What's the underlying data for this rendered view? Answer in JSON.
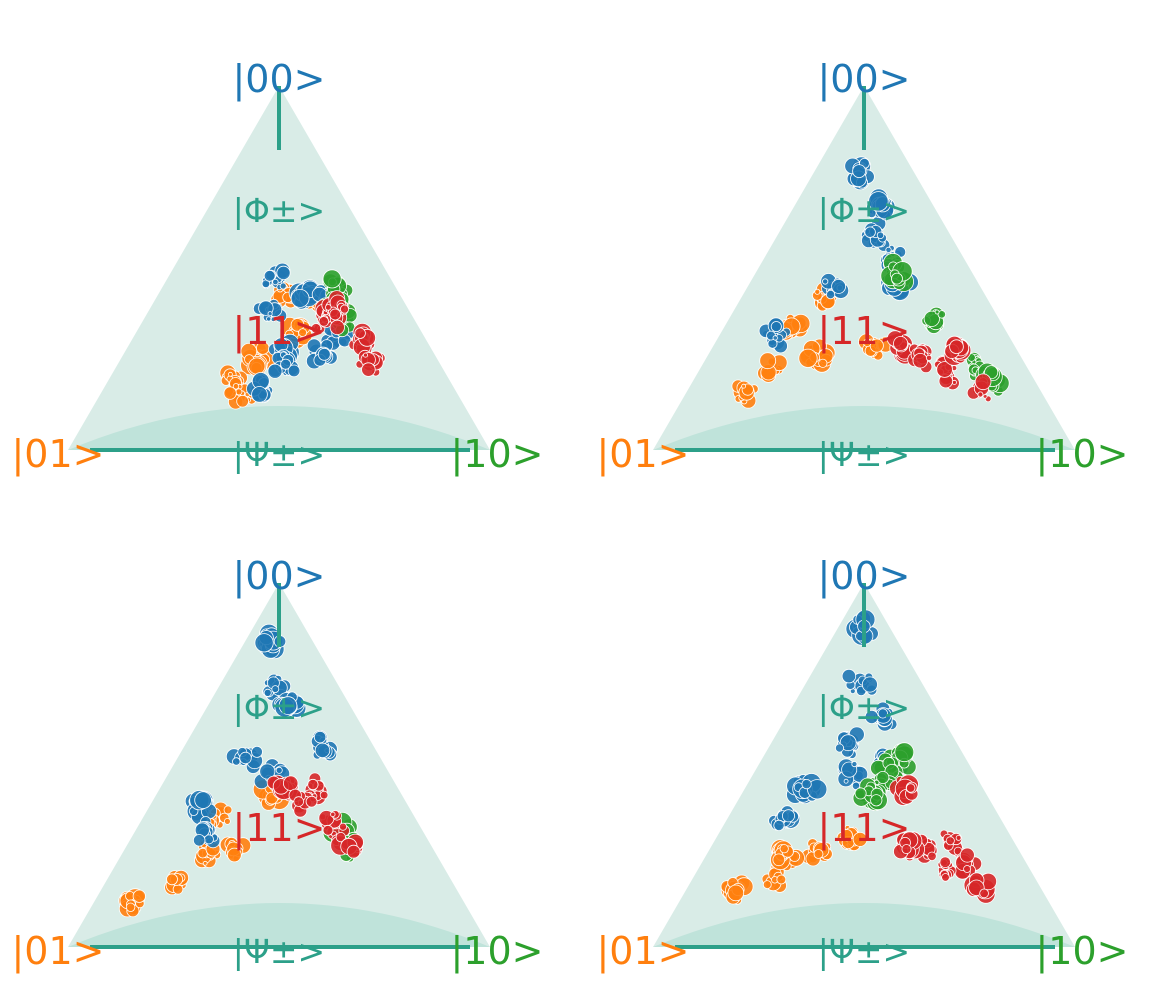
{
  "colors": {
    "state_00": "#1f77b4",
    "state_01": "#ff7f0e",
    "state_10": "#2ca02c",
    "state_11": "#d62728",
    "bell": "#2ca089",
    "fill_outer": "#d9ece7",
    "fill_inner": "#bfe3da"
  },
  "chart_data": [
    {
      "type": "scatter",
      "labels": {
        "top": "|00>",
        "left": "|01>",
        "right": "|10>",
        "center": "|11>",
        "upper": "|Φ±>",
        "bottom": "|Ψ±>"
      },
      "series": [
        {
          "state": "00",
          "clusters": [
            [
              0.32,
              0.13,
              0.25
            ],
            [
              0.3,
              0.04,
              0.26
            ],
            [
              0.2,
              0.09,
              0.36
            ],
            [
              0.2,
              0.28,
              0.3
            ],
            [
              0.25,
              0.2,
              0.15
            ],
            [
              0.32,
              0.11,
              0.1
            ],
            [
              0.07,
              0.36,
              0.28
            ],
            [
              0.09,
              0.22,
              0.24
            ],
            [
              0.1,
              0.1,
              0.3
            ]
          ]
        },
        {
          "state": "01",
          "clusters": [
            [
              0.16,
              0.12,
              0.2
            ],
            [
              0.26,
              0.04,
              0.22
            ],
            [
              0.3,
              0.13,
              0.16
            ],
            [
              0.13,
              0.3,
              0.2
            ],
            [
              0.08,
              0.4,
              0.18
            ],
            [
              0.03,
              0.38,
              0.2
            ]
          ]
        },
        {
          "state": "10",
          "clusters": [
            [
              0.33,
              0.03,
              0.3
            ],
            [
              0.27,
              0.03,
              0.3
            ],
            [
              0.24,
              0.05,
              0.35
            ]
          ]
        },
        {
          "state": "11",
          "clusters": [
            [
              0.3,
              0.1,
              0.35
            ],
            [
              0.17,
              0.02,
              0.25
            ],
            [
              0.25,
              0.02,
              0.3
            ],
            [
              0.16,
              0.0,
              0.4
            ],
            [
              0.1,
              0.02,
              0.45
            ]
          ]
        }
      ]
    },
    {
      "type": "scatter",
      "labels": {
        "top": "|00>",
        "left": "|01>",
        "right": "|10>",
        "center": "|11>",
        "upper": "|Φ±>",
        "bottom": "|Ψ±>"
      },
      "series": [
        {
          "state": "00",
          "clusters": [
            [
              0.68,
              0.04,
              0.02
            ],
            [
              0.45,
              0.03,
              0.1
            ],
            [
              0.38,
              0.01,
              0.15
            ],
            [
              0.3,
              0.04,
              0.2
            ],
            [
              0.36,
              0.25,
              0.1
            ],
            [
              0.22,
              0.45,
              0.04
            ],
            [
              0.55,
              0.0,
              0.09
            ]
          ]
        },
        {
          "state": "01",
          "clusters": [
            [
              0.2,
              0.36,
              0.02
            ],
            [
              0.08,
              0.46,
              0.01
            ],
            [
              0.04,
              0.58,
              0.01
            ],
            [
              0.06,
              0.28,
              0.06
            ],
            [
              0.04,
              0.08,
              0.14
            ],
            [
              0.28,
              0.24,
              0.04
            ]
          ]
        },
        {
          "state": "10",
          "clusters": [
            [
              0.32,
              0.0,
              0.16
            ],
            [
              0.22,
              0.0,
              0.34
            ],
            [
              0.12,
              0.0,
              0.52
            ],
            [
              0.1,
              0.0,
              0.62
            ]
          ]
        },
        {
          "state": "11",
          "clusters": [
            [
              0.04,
              0.0,
              0.18
            ],
            [
              0.04,
              0.0,
              0.28
            ],
            [
              0.03,
              0.0,
              0.4
            ],
            [
              0.15,
              0.0,
              0.45
            ],
            [
              0.04,
              0.0,
              0.56
            ]
          ]
        }
      ]
    },
    {
      "type": "scatter",
      "labels": {
        "top": "|00>",
        "left": "|01>",
        "right": "|10>",
        "center": "|11>",
        "upper": "|Φ±>",
        "bottom": "|Ψ±>"
      },
      "series": [
        {
          "state": "00",
          "clusters": [
            [
              0.8,
              0.05,
              0.01
            ],
            [
              0.62,
              0.06,
              0.04
            ],
            [
              0.4,
              0.2,
              0.04
            ],
            [
              0.3,
              0.4,
              0.03
            ],
            [
              0.33,
              0.14,
              0.1
            ],
            [
              0.2,
              0.4,
              0.05
            ],
            [
              0.54,
              0.0,
              0.06
            ],
            [
              0.44,
              0.0,
              0.22
            ]
          ]
        },
        {
          "state": "01",
          "clusters": [
            [
              0.05,
              0.7,
              0.01
            ],
            [
              0.03,
              0.5,
              0.01
            ],
            [
              0.2,
              0.3,
              0.01
            ],
            [
              0.26,
              0.14,
              0.1
            ],
            [
              0.09,
              0.36,
              0.03
            ],
            [
              0.08,
              0.26,
              0.05
            ]
          ]
        },
        {
          "state": "10",
          "clusters": [
            [
              0.16,
              0.02,
              0.32
            ],
            [
              0.1,
              0.02,
              0.36
            ]
          ]
        },
        {
          "state": "11",
          "clusters": [
            [
              0.24,
              0.06,
              0.08
            ],
            [
              0.26,
              0.02,
              0.2
            ],
            [
              0.17,
              0.02,
              0.28
            ],
            [
              0.12,
              0.02,
              0.35
            ],
            [
              0.2,
              0.04,
              0.16
            ]
          ]
        }
      ]
    },
    {
      "type": "scatter",
      "labels": {
        "top": "|00>",
        "left": "|01>",
        "right": "|10>",
        "center": "|11>",
        "upper": "|Φ±>",
        "bottom": "|Ψ±>"
      },
      "series": [
        {
          "state": "00",
          "clusters": [
            [
              0.84,
              0.03,
              0.01
            ],
            [
              0.64,
              0.06,
              0.04
            ],
            [
              0.42,
              0.1,
              0.04
            ],
            [
              0.32,
              0.3,
              0.02
            ],
            [
              0.52,
              0.03,
              0.12
            ],
            [
              0.38,
              0.05,
              0.18
            ],
            [
              0.24,
              0.4,
              0.02
            ],
            [
              0.34,
              0.15,
              0.1
            ]
          ]
        },
        {
          "state": "01",
          "clusters": [
            [
              0.05,
              0.62,
              0.01
            ],
            [
              0.02,
              0.44,
              0.02
            ],
            [
              0.03,
              0.24,
              0.02
            ],
            [
              0.1,
              0.4,
              0.04
            ],
            [
              0.03,
              0.1,
              0.04
            ]
          ]
        },
        {
          "state": "10",
          "clusters": [
            [
              0.38,
              0.0,
              0.18
            ],
            [
              0.32,
              0.02,
              0.14
            ],
            [
              0.26,
              0.04,
              0.12
            ],
            [
              0.22,
              0.06,
              0.1
            ]
          ]
        },
        {
          "state": "11",
          "clusters": [
            [
              0.26,
              0.0,
              0.2
            ],
            [
              0.15,
              0.0,
              0.42
            ],
            [
              0.1,
              0.0,
              0.5
            ],
            [
              0.04,
              0.0,
              0.56
            ],
            [
              0.06,
              0.0,
              0.3
            ],
            [
              0.03,
              0.0,
              0.4
            ],
            [
              0.04,
              0.0,
              0.22
            ]
          ]
        }
      ]
    }
  ]
}
